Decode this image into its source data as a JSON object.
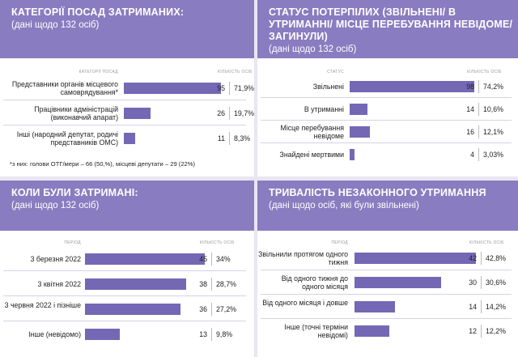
{
  "chart_data": [
    {
      "type": "bar",
      "title": "КАТЕГОРІЇ ПОСАД ЗАТРИМАНИХ:",
      "subtitle": "(дані щодо 132 осіб)",
      "category_header": "КАТЕГОРІЇ ПОСАД",
      "value_header": "КІЛЬКІСТЬ ОСІБ",
      "categories": [
        "Представники органів місцевого самоврядування*",
        "Працівники адміністрацій (виконавчий апарат)",
        "Інші (народний депутат, родичі представників ОМС)"
      ],
      "values": [
        95,
        26,
        11
      ],
      "percents": [
        "71,9%",
        "19,7%",
        "8,3%"
      ],
      "xlim": [
        0,
        98
      ],
      "note": "*з них: голови ОТГ/мери – 66 (50,%), місцеві депутати – 29 (22%)"
    },
    {
      "type": "bar",
      "title": "СТАТУС ПОТЕРПІЛИХ (ЗВІЛЬНЕНІ/ В УТРИМАННІ/ МІСЦЕ ПЕРЕБУВАННЯ НЕВІДОМЕ/ ЗАГИНУЛИ)",
      "subtitle": "(дані щодо 132 осіб)",
      "category_header": "СТАТУС",
      "value_header": "КІЛЬКІСТЬ ОСІБ",
      "categories": [
        "Звільнені",
        "В утриманні",
        "Місце перебування невідоме",
        "Знайдені мертвими"
      ],
      "values": [
        98,
        14,
        16,
        4
      ],
      "percents": [
        "74,2%",
        "10,6%",
        "12,1%",
        "3,03%"
      ],
      "xlim": [
        0,
        98
      ]
    },
    {
      "type": "bar",
      "title": "КОЛИ БУЛИ ЗАТРИМАНІ:",
      "subtitle": "(дані щодо 132 осіб)",
      "category_header": "ПЕРІОД",
      "value_header": "КІЛЬКІСТЬ ОСІБ",
      "categories": [
        "3 березня 2022",
        "3 квітня 2022",
        "3 червня 2022 і пізніше",
        "Інше (невідомо)"
      ],
      "values": [
        45,
        38,
        36,
        13
      ],
      "percents": [
        "34%",
        "28,7%",
        "27,2%",
        "9,8%"
      ],
      "xlim": [
        0,
        45
      ]
    },
    {
      "type": "bar",
      "title": "ТРИВАЛІСТЬ НЕЗАКОННОГО УТРИМАННЯ",
      "subtitle": "(дані щодо осіб, які були звільнені)",
      "category_header": "ПЕРІОД",
      "value_header": "КІЛЬКІСТЬ ОСІБ",
      "categories": [
        "Звільнили протягом одного тижня",
        "Від одного тижня до одного місяця",
        "Від одного місяця і довше",
        "Інше (точні терміни невідомі)"
      ],
      "values": [
        42,
        30,
        14,
        12
      ],
      "percents": [
        "42,8%",
        "30,6%",
        "14,2%",
        "12,2%"
      ],
      "xlim": [
        0,
        42
      ]
    }
  ]
}
